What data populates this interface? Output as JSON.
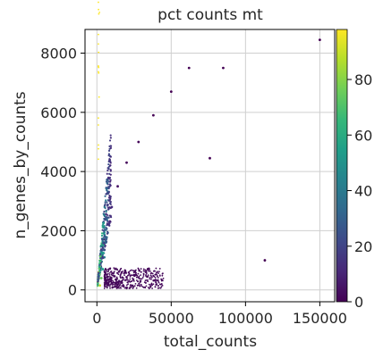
{
  "chart_data": {
    "type": "scatter",
    "title": "pct counts mt",
    "xlabel": "total_counts",
    "ylabel": "n_genes_by_counts",
    "xlim": [
      -8000,
      160000
    ],
    "ylim": [
      -400,
      8800
    ],
    "xticks": [
      0,
      50000,
      100000,
      150000
    ],
    "xtick_labels": [
      "0",
      "50000",
      "100000",
      "150000"
    ],
    "yticks": [
      0,
      2000,
      4000,
      6000,
      8000
    ],
    "ytick_labels": [
      "0",
      "2000",
      "4000",
      "6000",
      "8000"
    ],
    "grid": true,
    "colorbar": {
      "label": "",
      "range": [
        0,
        98
      ],
      "ticks": [
        0,
        20,
        40,
        60,
        80
      ],
      "tick_labels": [
        "0",
        "20",
        "40",
        "60",
        "80"
      ],
      "colormap": "viridis",
      "stops": [
        "#440154",
        "#482878",
        "#3e4989",
        "#31688e",
        "#26828e",
        "#1f9e89",
        "#35b779",
        "#6ece58",
        "#b5de2b",
        "#fde725"
      ]
    },
    "series": [
      {
        "color_by": "pct_counts_mt",
        "points": [
          {
            "x": 2000,
            "y": 150,
            "c": 90
          },
          {
            "x": 3000,
            "y": 400,
            "c": 75
          },
          {
            "x": 4000,
            "y": 700,
            "c": 55
          },
          {
            "x": 5000,
            "y": 1100,
            "c": 40
          },
          {
            "x": 6000,
            "y": 1600,
            "c": 30
          },
          {
            "x": 8000,
            "y": 2200,
            "c": 20
          },
          {
            "x": 10000,
            "y": 2800,
            "c": 12
          },
          {
            "x": 14000,
            "y": 3500,
            "c": 5
          },
          {
            "x": 20000,
            "y": 4300,
            "c": 2
          },
          {
            "x": 28000,
            "y": 5000,
            "c": 1
          },
          {
            "x": 38000,
            "y": 5900,
            "c": 0
          },
          {
            "x": 50000,
            "y": 6700,
            "c": 0
          },
          {
            "x": 62000,
            "y": 7500,
            "c": 0
          },
          {
            "x": 85000,
            "y": 7500,
            "c": 0
          },
          {
            "x": 76000,
            "y": 4450,
            "c": 0
          },
          {
            "x": 113000,
            "y": 1000,
            "c": 0
          },
          {
            "x": 150000,
            "y": 8450,
            "c": 0
          },
          {
            "x": 25000,
            "y": 500,
            "c": 3
          },
          {
            "x": 35000,
            "y": 700,
            "c": 1
          },
          {
            "x": 15000,
            "y": 300,
            "c": 6
          }
        ]
      }
    ]
  }
}
